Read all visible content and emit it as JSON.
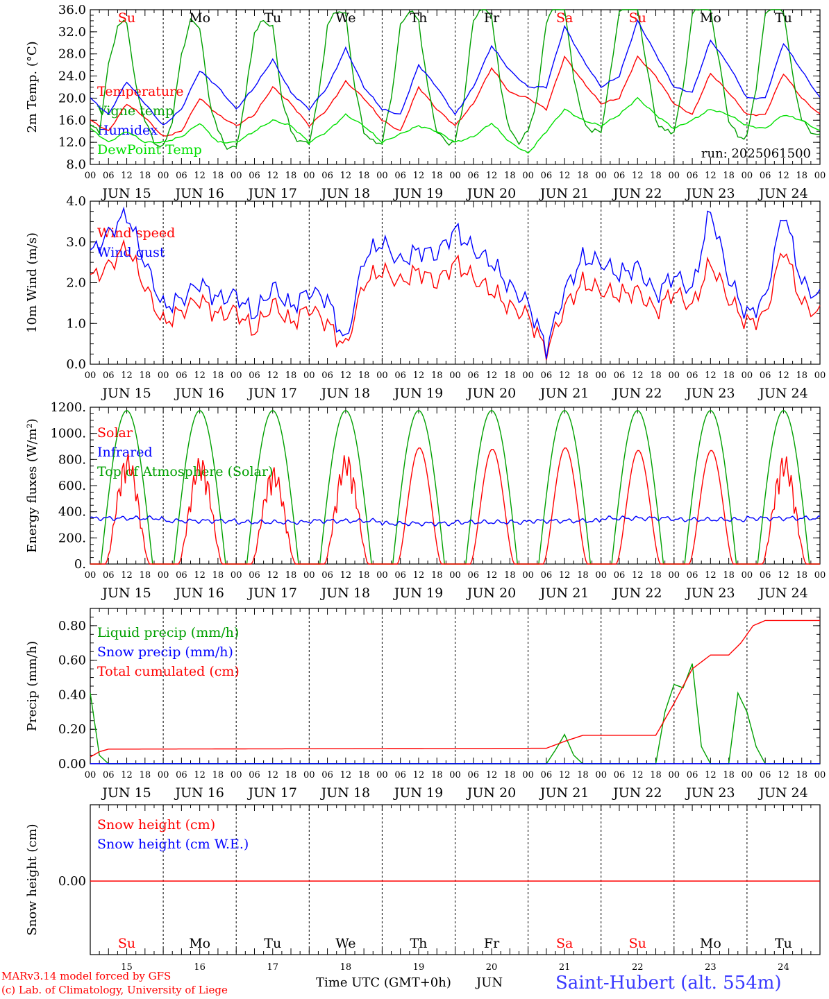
{
  "colors": {
    "red": "#ff0000",
    "green": "#00a000",
    "blue": "#0000ff",
    "lime": "#00e000",
    "black": "#000000"
  },
  "chart_data": [
    {
      "type": "line",
      "ylabel": "2m Temp. (°C)",
      "ylim": [
        8,
        36
      ],
      "yticks": [
        "8.0",
        "12.0",
        "16.0",
        "20.0",
        "24.0",
        "28.0",
        "32.0",
        "36.0"
      ],
      "note": "run: 2025061500",
      "legend": [
        {
          "label": "Temperature",
          "color": "red"
        },
        {
          "label": "Vigne temp",
          "color": "green"
        },
        {
          "label": "Humidex",
          "color": "blue"
        },
        {
          "label": "DewPoint Temp",
          "color": "lime"
        }
      ],
      "day_labels": [
        {
          "label": "Su",
          "color": "red"
        },
        {
          "label": "Mo",
          "color": "black"
        },
        {
          "label": "Tu",
          "color": "black"
        },
        {
          "label": "We",
          "color": "black"
        },
        {
          "label": "Th",
          "color": "black"
        },
        {
          "label": "Fr",
          "color": "black"
        },
        {
          "label": "Sa",
          "color": "red"
        },
        {
          "label": "Su",
          "color": "red"
        },
        {
          "label": "Mo",
          "color": "black"
        },
        {
          "label": "Tu",
          "color": "black"
        }
      ],
      "series": [
        {
          "name": "Temperature",
          "color": "red",
          "x_hours": [
            0,
            6,
            12,
            18,
            24,
            30,
            36,
            42,
            48,
            54,
            60,
            66,
            72,
            78,
            84,
            90,
            96,
            102,
            108,
            114,
            120,
            126,
            132,
            138,
            144,
            150,
            156,
            162,
            168,
            174,
            180,
            186,
            192,
            198,
            204,
            210,
            216,
            222,
            228,
            234,
            240
          ],
          "values": [
            16,
            14,
            19,
            16.5,
            13,
            14,
            20,
            17,
            15,
            17,
            22,
            19,
            15,
            18,
            23,
            20,
            16,
            14,
            22,
            18,
            15,
            19,
            25.5,
            21,
            20,
            18,
            27.5,
            23,
            19,
            20,
            27.5,
            24,
            19,
            17,
            24.5,
            21,
            17,
            17,
            24.5,
            20,
            17
          ]
        },
        {
          "name": "Vigne temp",
          "color": "green",
          "x_hours": [
            0,
            3,
            6,
            9,
            12,
            15,
            18,
            21,
            24,
            27,
            30,
            33,
            36,
            39,
            42,
            45,
            48,
            51,
            54,
            57,
            60,
            63,
            66,
            69,
            72,
            75,
            78,
            81,
            84,
            87,
            90,
            93,
            96,
            99,
            102,
            105,
            108,
            111,
            114,
            117,
            120,
            123,
            126,
            129,
            132,
            135,
            138,
            141,
            144,
            147,
            150,
            153,
            156,
            159,
            162,
            165,
            168,
            171,
            174,
            177,
            180,
            183,
            186,
            189,
            192,
            195,
            198,
            201,
            204,
            207,
            210,
            213,
            216,
            219,
            222,
            225,
            228,
            231,
            234,
            237,
            240
          ],
          "values": [
            15,
            14,
            26,
            33,
            34,
            22,
            16,
            12,
            11,
            16,
            28,
            34,
            33,
            20,
            14,
            11,
            11,
            20,
            32,
            34,
            33,
            20,
            14,
            12,
            12,
            20,
            33,
            36,
            35,
            22,
            14,
            12,
            12,
            20,
            33,
            36,
            34,
            22,
            14,
            12,
            12,
            20,
            34,
            37,
            35,
            22,
            14,
            12,
            14,
            20,
            34,
            37,
            36,
            24,
            16,
            14,
            14,
            24,
            36,
            38,
            36,
            26,
            16,
            14,
            14,
            22,
            35,
            37,
            36,
            26,
            16,
            13,
            13,
            22,
            35,
            38,
            36,
            24,
            16,
            14,
            13
          ]
        },
        {
          "name": "Humidex",
          "color": "blue",
          "x_hours": [
            0,
            6,
            12,
            18,
            24,
            30,
            36,
            42,
            48,
            54,
            60,
            66,
            72,
            78,
            84,
            90,
            96,
            102,
            108,
            114,
            120,
            126,
            132,
            138,
            144,
            150,
            156,
            162,
            168,
            174,
            180,
            186,
            192,
            198,
            204,
            210,
            216,
            222,
            228,
            234,
            240
          ],
          "values": [
            20,
            17,
            23,
            19,
            15,
            18,
            25,
            22,
            18,
            22,
            27,
            21,
            18,
            22,
            29,
            22,
            18,
            17,
            26,
            22,
            17,
            22,
            29.5,
            25,
            22,
            22,
            33,
            27,
            22,
            24,
            34,
            28,
            22,
            21,
            30.5,
            26,
            20,
            20,
            30,
            25,
            20
          ]
        },
        {
          "name": "DewPoint Temp",
          "color": "lime",
          "x_hours": [
            0,
            6,
            12,
            18,
            24,
            30,
            36,
            42,
            48,
            54,
            60,
            66,
            72,
            78,
            84,
            90,
            96,
            102,
            108,
            114,
            120,
            126,
            132,
            138,
            144,
            150,
            156,
            162,
            168,
            174,
            180,
            186,
            192,
            198,
            204,
            210,
            216,
            222,
            228,
            234,
            240
          ],
          "values": [
            14.5,
            12,
            14,
            12,
            12,
            13,
            15.5,
            12,
            12,
            14,
            16,
            15,
            12,
            14,
            17,
            15,
            12,
            13.5,
            15,
            14,
            12,
            13,
            15.5,
            12,
            10,
            14,
            18,
            16,
            15,
            17,
            20,
            17,
            14.5,
            16,
            18,
            17,
            15,
            14.5,
            17,
            16,
            14
          ]
        }
      ]
    },
    {
      "type": "line",
      "ylabel": "10m Wind (m/s)",
      "ylim": [
        0,
        4
      ],
      "yticks": [
        "0.0",
        "1.0",
        "2.0",
        "3.0",
        "4.0"
      ],
      "legend": [
        {
          "label": "Wind speed",
          "color": "red"
        },
        {
          "label": "Wind gust",
          "color": "blue"
        }
      ],
      "series": [
        {
          "name": "Wind speed",
          "color": "red",
          "x_hours": [
            0,
            6,
            12,
            18,
            24,
            30,
            36,
            42,
            48,
            54,
            60,
            66,
            72,
            78,
            84,
            90,
            96,
            102,
            108,
            114,
            120,
            126,
            132,
            138,
            144,
            150,
            156,
            162,
            168,
            174,
            180,
            186,
            192,
            198,
            204,
            210,
            216,
            222,
            228,
            234,
            240
          ],
          "values": [
            2.1,
            2.4,
            2.9,
            1.9,
            1.0,
            1.3,
            1.6,
            1.2,
            1.3,
            0.8,
            1.5,
            1.0,
            1.4,
            1.0,
            0.4,
            2.0,
            2.3,
            2.0,
            2.3,
            2.0,
            2.5,
            2.1,
            1.8,
            1.4,
            1.2,
            0.3,
            1.4,
            2.0,
            1.8,
            1.7,
            1.8,
            1.3,
            1.8,
            1.4,
            2.5,
            1.6,
            1.0,
            1.2,
            2.9,
            1.5,
            1.2
          ]
        },
        {
          "name": "Wind gust",
          "color": "blue",
          "x_hours": [
            0,
            6,
            12,
            18,
            24,
            30,
            36,
            42,
            48,
            54,
            60,
            66,
            72,
            78,
            84,
            90,
            96,
            102,
            108,
            114,
            120,
            126,
            132,
            138,
            144,
            150,
            156,
            162,
            168,
            174,
            180,
            186,
            192,
            198,
            204,
            210,
            216,
            222,
            228,
            234,
            240
          ],
          "values": [
            2.7,
            3.2,
            3.7,
            2.5,
            1.4,
            1.6,
            2.0,
            1.6,
            1.7,
            1.2,
            1.9,
            1.4,
            1.8,
            1.6,
            0.5,
            2.6,
            3.0,
            2.5,
            2.8,
            2.7,
            3.3,
            2.8,
            2.5,
            1.9,
            1.5,
            0.4,
            1.8,
            2.6,
            2.5,
            2.2,
            2.4,
            1.7,
            2.2,
            1.8,
            3.8,
            2.1,
            1.2,
            1.6,
            3.8,
            2.0,
            1.6
          ]
        }
      ]
    },
    {
      "type": "line",
      "ylabel": "Energy fluxes (W/m²)",
      "ylim": [
        0,
        1200
      ],
      "yticks": [
        "0.",
        "200.",
        "400.",
        "600.",
        "800.",
        "1000.",
        "1200."
      ],
      "legend": [
        {
          "label": "Solar",
          "color": "red"
        },
        {
          "label": "Infrared",
          "color": "blue"
        },
        {
          "label": "Top of Atmosphere (Solar)",
          "color": "green"
        }
      ],
      "series": [
        {
          "name": "Solar",
          "color": "red",
          "daily_peaks": [
            850,
            830,
            750,
            850,
            890,
            880,
            890,
            870,
            870,
            840
          ]
        },
        {
          "name": "Infrared",
          "color": "blue",
          "daily_level": [
            350,
            330,
            320,
            330,
            310,
            320,
            330,
            350,
            340,
            350
          ]
        },
        {
          "name": "Top of Atmosphere (Solar)",
          "color": "green",
          "daily_peak": 1175
        }
      ]
    },
    {
      "type": "line",
      "ylabel": "Precip (mm/h)",
      "ylim": [
        0,
        0.9
      ],
      "yticks": [
        "0.00",
        "0.20",
        "0.40",
        "0.60",
        "0.80"
      ],
      "legend": [
        {
          "label": "Liquid precip (mm/h)",
          "color": "green"
        },
        {
          "label": "Snow precip (mm/h)",
          "color": "blue"
        },
        {
          "label": "Total cumulated (cm)",
          "color": "red"
        }
      ],
      "series": [
        {
          "name": "Liquid precip (mm/h)",
          "color": "green",
          "x_hours": [
            0,
            3,
            6,
            9,
            150,
            153,
            156,
            159,
            162,
            186,
            189,
            192,
            195,
            198,
            201,
            204,
            210,
            213,
            216,
            219,
            222
          ],
          "values": [
            0.41,
            0.05,
            0.0,
            0.0,
            0.0,
            0.08,
            0.17,
            0.05,
            0.0,
            0.0,
            0.3,
            0.46,
            0.44,
            0.58,
            0.1,
            0.0,
            0.0,
            0.41,
            0.3,
            0.1,
            0.0
          ]
        },
        {
          "name": "Total cumulated (cm)",
          "color": "red",
          "x_hours": [
            0,
            3,
            6,
            150,
            156,
            162,
            186,
            192,
            198,
            204,
            210,
            214,
            218,
            222,
            240
          ],
          "values": [
            0.04,
            0.07,
            0.085,
            0.09,
            0.13,
            0.165,
            0.165,
            0.35,
            0.55,
            0.63,
            0.63,
            0.7,
            0.8,
            0.83,
            0.83
          ]
        }
      ]
    },
    {
      "type": "line",
      "ylabel": "Snow height (cm)",
      "yticks": [
        "0.00"
      ],
      "legend": [
        {
          "label": "Snow height (cm)",
          "color": "red"
        },
        {
          "label": "Snow height (cm W.E.)",
          "color": "blue"
        }
      ],
      "series": [
        {
          "name": "Snow height (cm)",
          "color": "red",
          "values": [
            0,
            0
          ]
        }
      ]
    }
  ],
  "hour_ticks": [
    "00",
    "06",
    "12",
    "18"
  ],
  "date_labels": [
    "JUN 15",
    "JUN 16",
    "JUN 17",
    "JUN 18",
    "JUN 19",
    "JUN 20",
    "JUN 21",
    "JUN 22",
    "JUN 23",
    "JUN 24"
  ],
  "bottom_days": [
    "15",
    "16",
    "17",
    "18",
    "19",
    "20",
    "21",
    "22",
    "23",
    "24"
  ],
  "xlabel": "Time UTC (GMT+0h)",
  "month": "JUN",
  "credits": {
    "line1": "MARv3.14 model forced by GFS",
    "line2": "(c) Lab. of Climatology, University of Liege"
  },
  "station": "Saint-Hubert (alt. 554m)"
}
